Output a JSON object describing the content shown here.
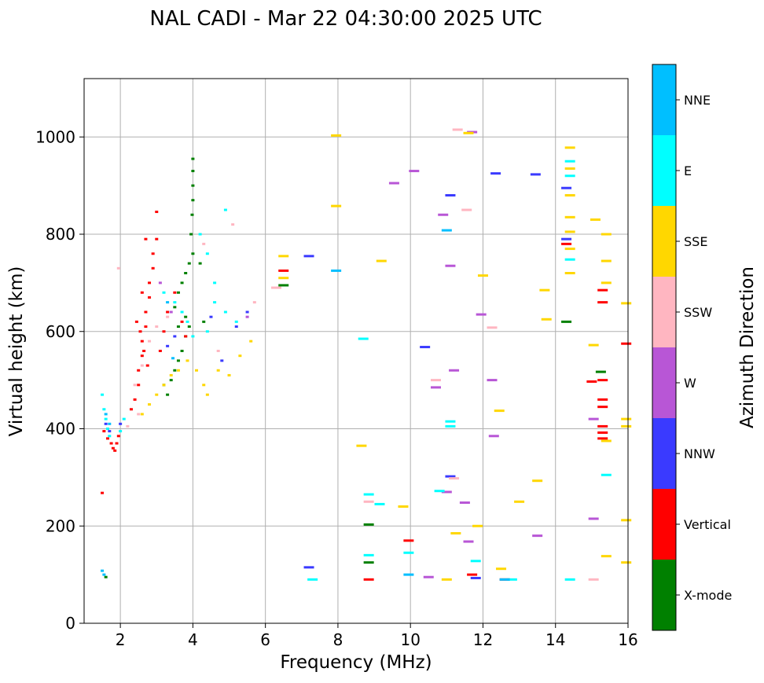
{
  "chart_data": {
    "type": "scatter",
    "title": "NAL CADI - Mar 22 04:30:00 2025 UTC",
    "xlabel": "Frequency (MHz)",
    "ylabel": "Virtual height (km)",
    "xlim": [
      1,
      16
    ],
    "ylim": [
      0,
      1120
    ],
    "xticks": [
      2,
      4,
      6,
      8,
      10,
      12,
      14,
      16
    ],
    "xtick_labels": [
      "2",
      "4",
      "6",
      "8",
      "10",
      "12",
      "14",
      "16"
    ],
    "yticks": [
      0,
      200,
      400,
      600,
      800,
      1000
    ],
    "ytick_labels": [
      "0",
      "200",
      "400",
      "600",
      "800",
      "1000"
    ],
    "grid": true,
    "colorbar": {
      "label": "Azimuth Direction",
      "categories": [
        {
          "name": "X-mode",
          "color": "#008000"
        },
        {
          "name": "Vertical",
          "color": "#ff0000"
        },
        {
          "name": "NNW",
          "color": "#3a3aff"
        },
        {
          "name": "W",
          "color": "#b856d6"
        },
        {
          "name": "SSW",
          "color": "#ffb6c1"
        },
        {
          "name": "SSE",
          "color": "#ffd700"
        },
        {
          "name": "E",
          "color": "#00ffff"
        },
        {
          "name": "NNE",
          "color": "#00bfff"
        }
      ]
    },
    "series": [
      {
        "name": "X-mode",
        "points": [
          [
            3.4,
            500
          ],
          [
            3.5,
            520
          ],
          [
            3.6,
            540
          ],
          [
            3.7,
            560
          ],
          [
            3.8,
            590
          ],
          [
            3.9,
            610
          ],
          [
            3.5,
            650
          ],
          [
            3.6,
            680
          ],
          [
            3.7,
            700
          ],
          [
            3.8,
            720
          ],
          [
            3.9,
            740
          ],
          [
            4.0,
            760
          ],
          [
            3.95,
            800
          ],
          [
            3.98,
            840
          ],
          [
            4.0,
            870
          ],
          [
            4.0,
            900
          ],
          [
            4.0,
            930
          ],
          [
            4.0,
            955
          ],
          [
            3.8,
            630
          ],
          [
            3.6,
            610
          ],
          [
            4.2,
            740
          ],
          [
            4.3,
            620
          ],
          [
            3.3,
            470
          ],
          [
            3.2,
            490
          ],
          [
            6.5,
            695
          ],
          [
            8.85,
            125
          ],
          [
            8.85,
            203
          ],
          [
            14.3,
            620
          ],
          [
            15.25,
            517
          ],
          [
            1.6,
            95
          ]
        ]
      },
      {
        "name": "Vertical",
        "points": [
          [
            1.55,
            395
          ],
          [
            1.65,
            380
          ],
          [
            1.75,
            370
          ],
          [
            1.8,
            360
          ],
          [
            1.85,
            355
          ],
          [
            1.9,
            370
          ],
          [
            1.95,
            385
          ],
          [
            1.5,
            268
          ],
          [
            2.3,
            440
          ],
          [
            2.4,
            460
          ],
          [
            2.5,
            490
          ],
          [
            2.5,
            520
          ],
          [
            2.6,
            550
          ],
          [
            2.6,
            580
          ],
          [
            2.7,
            610
          ],
          [
            2.7,
            640
          ],
          [
            2.8,
            670
          ],
          [
            2.8,
            700
          ],
          [
            2.9,
            730
          ],
          [
            2.9,
            760
          ],
          [
            3.0,
            790
          ],
          [
            3.0,
            846
          ],
          [
            2.55,
            600
          ],
          [
            2.65,
            560
          ],
          [
            2.75,
            530
          ],
          [
            3.1,
            560
          ],
          [
            3.2,
            600
          ],
          [
            3.3,
            640
          ],
          [
            3.5,
            680
          ],
          [
            3.7,
            620
          ],
          [
            3.8,
            590
          ],
          [
            2.45,
            620
          ],
          [
            2.6,
            680
          ],
          [
            2.7,
            790
          ],
          [
            6.5,
            725
          ],
          [
            8.85,
            90
          ],
          [
            9.95,
            170
          ],
          [
            11.7,
            100
          ],
          [
            12.6,
            90
          ],
          [
            14.3,
            780
          ],
          [
            15.0,
            497
          ],
          [
            15.3,
            660
          ],
          [
            15.3,
            685
          ],
          [
            15.3,
            500
          ],
          [
            15.3,
            460
          ],
          [
            15.3,
            445
          ],
          [
            15.3,
            405
          ],
          [
            15.3,
            392
          ],
          [
            15.3,
            380
          ],
          [
            15.95,
            575
          ]
        ]
      },
      {
        "name": "NNW",
        "points": [
          [
            1.6,
            410
          ],
          [
            1.7,
            395
          ],
          [
            2.0,
            410
          ],
          [
            3.3,
            570
          ],
          [
            3.5,
            590
          ],
          [
            4.5,
            630
          ],
          [
            4.8,
            540
          ],
          [
            5.5,
            640
          ],
          [
            5.2,
            610
          ],
          [
            7.2,
            755
          ],
          [
            10.4,
            568
          ],
          [
            11.1,
            880
          ],
          [
            11.1,
            302
          ],
          [
            11.8,
            93
          ],
          [
            12.35,
            925
          ],
          [
            13.45,
            923
          ],
          [
            14.3,
            790
          ],
          [
            14.3,
            895
          ],
          [
            7.2,
            115
          ]
        ]
      },
      {
        "name": "W",
        "points": [
          [
            3.1,
            700
          ],
          [
            3.4,
            640
          ],
          [
            5.5,
            630
          ],
          [
            9.55,
            905
          ],
          [
            10.1,
            930
          ],
          [
            10.5,
            95
          ],
          [
            10.7,
            485
          ],
          [
            10.9,
            840
          ],
          [
            11.0,
            270
          ],
          [
            11.1,
            735
          ],
          [
            11.2,
            520
          ],
          [
            11.5,
            248
          ],
          [
            11.6,
            168
          ],
          [
            11.7,
            1010
          ],
          [
            11.95,
            635
          ],
          [
            12.25,
            500
          ],
          [
            12.3,
            385
          ],
          [
            13.5,
            180
          ],
          [
            15.05,
            420
          ],
          [
            15.05,
            215
          ]
        ]
      },
      {
        "name": "SSW",
        "points": [
          [
            2.4,
            490
          ],
          [
            2.5,
            430
          ],
          [
            2.6,
            530
          ],
          [
            2.2,
            405
          ],
          [
            2.8,
            580
          ],
          [
            3.0,
            610
          ],
          [
            3.3,
            630
          ],
          [
            4.3,
            780
          ],
          [
            4.7,
            560
          ],
          [
            5.1,
            820
          ],
          [
            5.7,
            660
          ],
          [
            6.3,
            690
          ],
          [
            8.85,
            250
          ],
          [
            10.7,
            500
          ],
          [
            11.3,
            1015
          ],
          [
            11.2,
            298
          ],
          [
            11.55,
            850
          ],
          [
            12.25,
            608
          ],
          [
            15.05,
            90
          ],
          [
            1.95,
            730
          ]
        ]
      },
      {
        "name": "SSE",
        "points": [
          [
            2.6,
            430
          ],
          [
            2.8,
            450
          ],
          [
            3.0,
            470
          ],
          [
            3.2,
            490
          ],
          [
            3.4,
            510
          ],
          [
            3.6,
            520
          ],
          [
            3.85,
            540
          ],
          [
            4.1,
            520
          ],
          [
            4.3,
            490
          ],
          [
            4.4,
            470
          ],
          [
            4.7,
            520
          ],
          [
            5.0,
            510
          ],
          [
            5.3,
            550
          ],
          [
            5.6,
            580
          ],
          [
            6.5,
            755
          ],
          [
            6.5,
            710
          ],
          [
            7.95,
            1003
          ],
          [
            7.95,
            858
          ],
          [
            8.65,
            365
          ],
          [
            9.2,
            745
          ],
          [
            9.8,
            240
          ],
          [
            11.0,
            90
          ],
          [
            11.25,
            185
          ],
          [
            11.6,
            1008
          ],
          [
            11.85,
            200
          ],
          [
            12.0,
            715
          ],
          [
            12.45,
            437
          ],
          [
            12.5,
            112
          ],
          [
            13.0,
            250
          ],
          [
            13.5,
            293
          ],
          [
            13.7,
            685
          ],
          [
            13.75,
            625
          ],
          [
            14.4,
            978
          ],
          [
            14.4,
            935
          ],
          [
            14.4,
            880
          ],
          [
            14.4,
            835
          ],
          [
            14.4,
            805
          ],
          [
            14.4,
            770
          ],
          [
            14.4,
            720
          ],
          [
            15.1,
            830
          ],
          [
            15.05,
            572
          ],
          [
            15.4,
            800
          ],
          [
            15.4,
            745
          ],
          [
            15.4,
            700
          ],
          [
            15.4,
            375
          ],
          [
            15.4,
            138
          ],
          [
            15.95,
            658
          ],
          [
            15.95,
            420
          ],
          [
            15.95,
            405
          ],
          [
            15.95,
            212
          ],
          [
            15.95,
            125
          ]
        ]
      },
      {
        "name": "E",
        "points": [
          [
            1.5,
            470
          ],
          [
            1.55,
            440
          ],
          [
            1.6,
            420
          ],
          [
            1.65,
            400
          ],
          [
            1.7,
            385
          ],
          [
            2.0,
            395
          ],
          [
            2.1,
            420
          ],
          [
            3.2,
            680
          ],
          [
            3.5,
            660
          ],
          [
            3.7,
            640
          ],
          [
            3.85,
            620
          ],
          [
            4.0,
            590
          ],
          [
            4.2,
            800
          ],
          [
            4.4,
            760
          ],
          [
            4.6,
            700
          ],
          [
            4.9,
            850
          ],
          [
            4.6,
            660
          ],
          [
            4.9,
            640
          ],
          [
            5.2,
            620
          ],
          [
            4.4,
            600
          ],
          [
            7.3,
            90
          ],
          [
            8.7,
            585
          ],
          [
            8.85,
            265
          ],
          [
            8.85,
            140
          ],
          [
            9.15,
            245
          ],
          [
            9.95,
            145
          ],
          [
            10.8,
            272
          ],
          [
            11.1,
            405
          ],
          [
            11.1,
            415
          ],
          [
            11.8,
            128
          ],
          [
            12.8,
            90
          ],
          [
            14.4,
            950
          ],
          [
            14.4,
            920
          ],
          [
            14.4,
            748
          ],
          [
            14.4,
            90
          ],
          [
            15.4,
            305
          ]
        ]
      },
      {
        "name": "NNE",
        "points": [
          [
            1.5,
            108
          ],
          [
            1.55,
            100
          ],
          [
            1.6,
            430
          ],
          [
            1.7,
            410
          ],
          [
            3.3,
            660
          ],
          [
            3.45,
            545
          ],
          [
            7.95,
            725
          ],
          [
            9.95,
            100
          ],
          [
            11.0,
            808
          ],
          [
            12.6,
            90
          ]
        ]
      }
    ]
  }
}
